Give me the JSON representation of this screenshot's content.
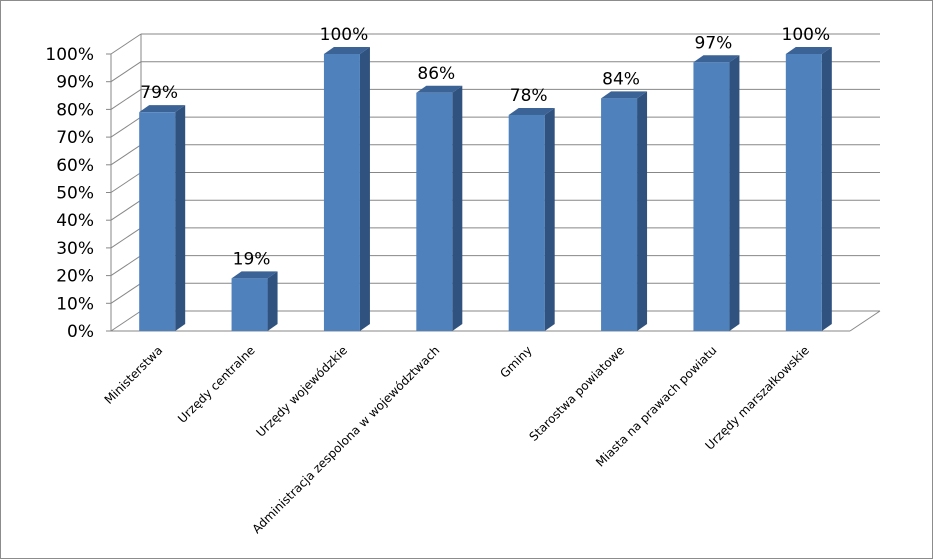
{
  "chart_data": {
    "type": "bar",
    "title": "",
    "xlabel": "",
    "ylabel": "",
    "categories": [
      "Ministerstwa",
      "Urzędy centralne",
      "Urzędy wojewódzkie",
      "Administracja zespolona w województwach",
      "Gminy",
      "Starostwa powiatowe",
      "Miasta na prawach powiatu",
      "Urzędy marszałkowskie"
    ],
    "values": [
      79,
      19,
      100,
      86,
      78,
      84,
      97,
      100
    ],
    "data_labels": [
      "79%",
      "19%",
      "100%",
      "86%",
      "78%",
      "84%",
      "97%",
      "100%"
    ],
    "ylim": [
      0,
      100
    ],
    "yticks": [
      "0%",
      "10%",
      "20%",
      "30%",
      "40%",
      "50%",
      "60%",
      "70%",
      "80%",
      "90%",
      "100%"
    ],
    "grid": true,
    "legend": "none",
    "style": "3d-column",
    "colors": {
      "bar_front": "#4f81bd",
      "bar_side": "#30527f",
      "bar_top": "#3c6395",
      "grid": "#878787"
    }
  }
}
